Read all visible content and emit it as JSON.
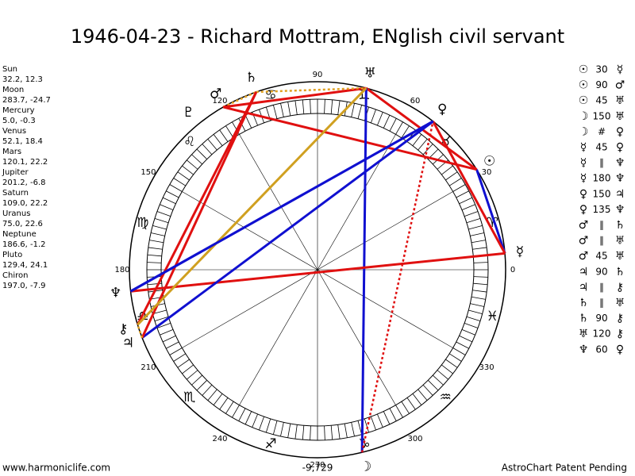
{
  "header": {
    "title": "1946-04-23 - Richard Mottram, ENglish civil servant"
  },
  "planets": [
    {
      "name": "Sun",
      "glyph": "☉",
      "coords": "32.2, 12.3",
      "longitude": 32.2
    },
    {
      "name": "Moon",
      "glyph": "☽",
      "coords": "283.7, -24.7",
      "longitude": 283.7
    },
    {
      "name": "Mercury",
      "glyph": "☿",
      "coords": "5.0, -0.3",
      "longitude": 5.0
    },
    {
      "name": "Venus",
      "glyph": "♀",
      "coords": "52.1, 18.4",
      "longitude": 52.1
    },
    {
      "name": "Mars",
      "glyph": "♂",
      "coords": "120.1, 22.2",
      "longitude": 120.1
    },
    {
      "name": "Jupiter",
      "glyph": "♃",
      "coords": "201.2, -6.8",
      "longitude": 201.2
    },
    {
      "name": "Saturn",
      "glyph": "♄",
      "coords": "109.0, 22.2",
      "longitude": 109.0
    },
    {
      "name": "Uranus",
      "glyph": "♅",
      "coords": "75.0, 22.6",
      "longitude": 75.0
    },
    {
      "name": "Neptune",
      "glyph": "♆",
      "coords": "186.6, -1.2",
      "longitude": 186.6
    },
    {
      "name": "Pluto",
      "glyph": "♇",
      "coords": "129.4, 24.1",
      "longitude": 129.4
    },
    {
      "name": "Chiron",
      "glyph": "⚷",
      "coords": "197.0, -7.9",
      "longitude": 197.0
    }
  ],
  "signs": [
    "♈",
    "♉",
    "♊",
    "♋",
    "♌",
    "♍",
    "♎",
    "♏",
    "♐",
    "♑",
    "♒",
    "♓"
  ],
  "degree_labels": [
    0,
    30,
    60,
    90,
    120,
    150,
    180,
    210,
    240,
    270,
    300,
    330
  ],
  "aspects": [
    {
      "from": "☉",
      "kind": "30",
      "to": "☿",
      "color": "#1010d0",
      "dashed": false
    },
    {
      "from": "☉",
      "kind": "90",
      "to": "♂",
      "color": "#e01010",
      "dashed": false
    },
    {
      "from": "☉",
      "kind": "45",
      "to": "♅",
      "color": "#e01010",
      "dashed": false
    },
    {
      "from": "☽",
      "kind": "150",
      "to": "♅",
      "color": "#1010d0",
      "dashed": false
    },
    {
      "from": "☽",
      "kind": "#",
      "to": "♀",
      "color": "#e01010",
      "dashed": true
    },
    {
      "from": "☿",
      "kind": "45",
      "to": "♀",
      "color": "#e01010",
      "dashed": false
    },
    {
      "from": "☿",
      "kind": "∥",
      "to": "♆",
      "color": "#e0a020",
      "dashed": true
    },
    {
      "from": "☿",
      "kind": "180",
      "to": "♆",
      "color": "#e01010",
      "dashed": false
    },
    {
      "from": "♀",
      "kind": "150",
      "to": "♃",
      "color": "#1010d0",
      "dashed": false
    },
    {
      "from": "♀",
      "kind": "135",
      "to": "♆",
      "color": "#1010d0",
      "dashed": false
    },
    {
      "from": "♂",
      "kind": "∥",
      "to": "♄",
      "color": "#e0a020",
      "dashed": true
    },
    {
      "from": "♂",
      "kind": "∥",
      "to": "♅",
      "color": "#e0a020",
      "dashed": true
    },
    {
      "from": "♂",
      "kind": "45",
      "to": "♅",
      "color": "#e01010",
      "dashed": false
    },
    {
      "from": "♃",
      "kind": "90",
      "to": "♄",
      "color": "#e01010",
      "dashed": false
    },
    {
      "from": "♃",
      "kind": "∥",
      "to": "⚷",
      "color": "#e0a020",
      "dashed": true
    },
    {
      "from": "♄",
      "kind": "∥",
      "to": "♅",
      "color": "#e0a020",
      "dashed": true
    },
    {
      "from": "♄",
      "kind": "90",
      "to": "⚷",
      "color": "#e01010",
      "dashed": false
    },
    {
      "from": "♅",
      "kind": "120",
      "to": "⚷",
      "color": "#d0a020",
      "dashed": false
    },
    {
      "from": "♆",
      "kind": "60",
      "to": "♀",
      "color": "#1010d0",
      "dashed": false
    }
  ],
  "footer": {
    "left": "www.harmoniclife.com",
    "center": "-9,729",
    "right": "AstroChart Patent Pending"
  }
}
